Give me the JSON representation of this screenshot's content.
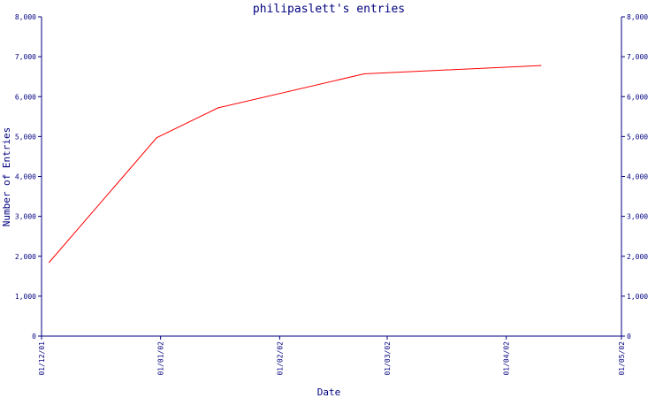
{
  "chart_data": {
    "type": "line",
    "title": "philipaslett's entries",
    "xlabel": "Date",
    "ylabel": "Number of Entries",
    "ylim": [
      0,
      8000
    ],
    "xlim": [
      "01/12/01",
      "01/05/02"
    ],
    "y_ticks": [
      "0",
      "1,000",
      "2,000",
      "3,000",
      "4,000",
      "5,000",
      "6,000",
      "7,000",
      "8,000"
    ],
    "y_ticks_right": [
      "0",
      "1,000",
      "2,000",
      "3,000",
      "4,000",
      "5,000",
      "6,000",
      "7,000",
      "8,000"
    ],
    "x_ticks": [
      "01/12/01",
      "01/01/02",
      "01/02/02",
      "01/03/02",
      "01/04/02",
      "01/05/02"
    ],
    "grid": false,
    "series": [
      {
        "color": "#ff0000",
        "x": [
          "2001-12-03",
          "2001-12-31",
          "2002-01-16",
          "2002-02-23",
          "2002-04-10"
        ],
        "values": [
          1850,
          4970,
          5720,
          6570,
          6780
        ]
      }
    ]
  }
}
